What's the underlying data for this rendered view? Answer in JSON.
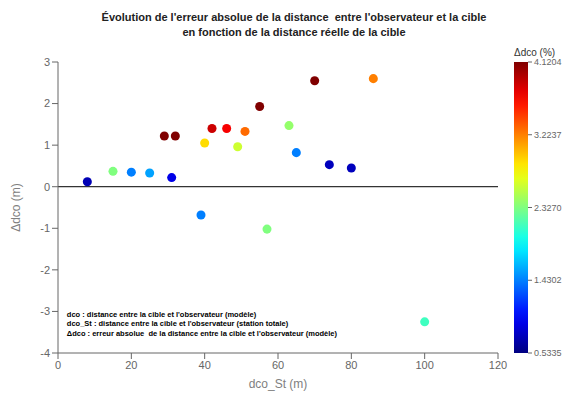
{
  "chart_data": {
    "type": "scatter",
    "title": "Évolution de l'erreur absolue de la distance  entre l'observateur et la cible",
    "subtitle": "en fonction de la distance réelle de la cible",
    "xlabel": "dco_St (m)",
    "ylabel": "Δdco (m)",
    "annotations": [
      "dco : distance entre la cible et l'observateur (modèle)",
      "dco_St : distance entre la cible et l'observateur (station totale)",
      "Δdco : erreur absolue  de la distance entre la cible et l'observateur (modèle)"
    ],
    "xlim": [
      0,
      120
    ],
    "ylim": [
      -4,
      3
    ],
    "xticks": [
      0,
      20,
      40,
      60,
      80,
      100,
      120
    ],
    "yticks": [
      -4,
      -3,
      -2,
      -1,
      0,
      1,
      2,
      3
    ],
    "reference_y": 0,
    "points": [
      {
        "x": 8,
        "y": 0.12,
        "c": 0.72
      },
      {
        "x": 15,
        "y": 0.37,
        "c": 2.327
      },
      {
        "x": 20,
        "y": 0.35,
        "c": 1.4302
      },
      {
        "x": 25,
        "y": 0.33,
        "c": 1.55
      },
      {
        "x": 29,
        "y": 1.22,
        "c": 4.1204
      },
      {
        "x": 32,
        "y": 1.22,
        "c": 4.1204
      },
      {
        "x": 31,
        "y": 0.22,
        "c": 0.9
      },
      {
        "x": 39,
        "y": -0.68,
        "c": 1.4302
      },
      {
        "x": 40,
        "y": 1.05,
        "c": 2.9
      },
      {
        "x": 42,
        "y": 1.4,
        "c": 3.85
      },
      {
        "x": 46,
        "y": 1.4,
        "c": 3.7
      },
      {
        "x": 49,
        "y": 0.96,
        "c": 2.6
      },
      {
        "x": 51,
        "y": 1.33,
        "c": 3.3
      },
      {
        "x": 55,
        "y": 1.93,
        "c": 4.1204
      },
      {
        "x": 57,
        "y": -1.02,
        "c": 2.327
      },
      {
        "x": 63,
        "y": 1.47,
        "c": 2.4
      },
      {
        "x": 65,
        "y": 0.82,
        "c": 1.4302
      },
      {
        "x": 70,
        "y": 2.55,
        "c": 4.1204
      },
      {
        "x": 74,
        "y": 0.53,
        "c": 0.75
      },
      {
        "x": 80,
        "y": 0.45,
        "c": 0.75
      },
      {
        "x": 86,
        "y": 2.6,
        "c": 3.2237
      },
      {
        "x": 100,
        "y": -3.25,
        "c": 2.1
      }
    ],
    "colorbar": {
      "label": "Δdco (%)",
      "range": [
        0.5335,
        4.1204
      ],
      "ticks": [
        0.5335,
        1.4302,
        {
          "value": 2.327,
          "label": "2.3270"
        },
        3.2237,
        4.1204
      ]
    }
  }
}
